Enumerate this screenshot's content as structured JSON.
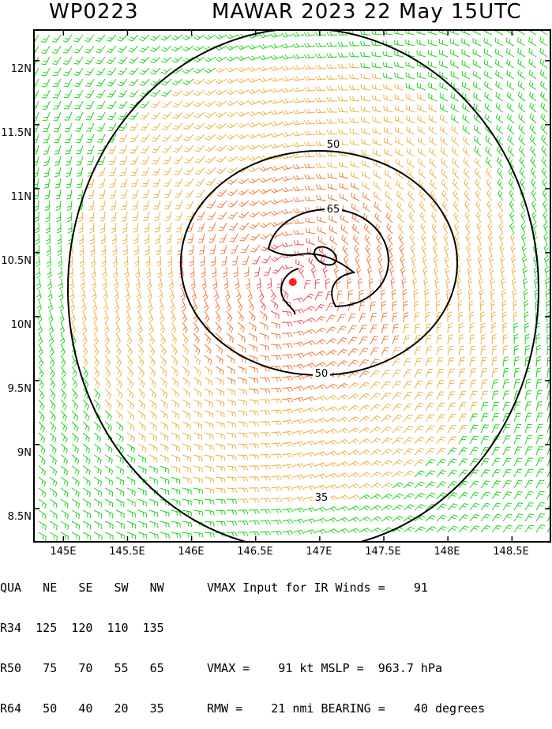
{
  "header": {
    "storm_id": "WP0223",
    "title": "MAWAR 2023 22 May 15UTC"
  },
  "map": {
    "lat_ticks": [
      "12N",
      "11.5N",
      "11N",
      "10.5N",
      "10N",
      "9.5N",
      "9N",
      "8.5N"
    ],
    "lon_ticks": [
      "145E",
      "145.5E",
      "146E",
      "146.5E",
      "147E",
      "147.5E",
      "148E",
      "148.5E"
    ],
    "contour_labels": [
      "50",
      "65",
      "50",
      "35"
    ],
    "center": {
      "lat": 10.27,
      "lon": 146.79
    },
    "wind_colors": {
      "low": "#22d022",
      "mid": "#f0b040",
      "high": "#f07838",
      "max": "#f04860",
      "center": "#ff2020"
    }
  },
  "table": {
    "header": [
      "QUA",
      "NE",
      "SE",
      "SW",
      "NW"
    ],
    "rows": [
      [
        "R34",
        "125",
        "120",
        "110",
        "135"
      ],
      [
        "R50",
        "75",
        "70",
        "55",
        "65"
      ],
      [
        "R64",
        "50",
        "40",
        "20",
        "35"
      ]
    ]
  },
  "info": {
    "line1": "VMAX Input for IR Winds =    91",
    "line2": "VMAX =    91 kt MSLP =  963.7 hPa",
    "line3": "RMW =    21 nmi BEARING =    40 degrees"
  }
}
